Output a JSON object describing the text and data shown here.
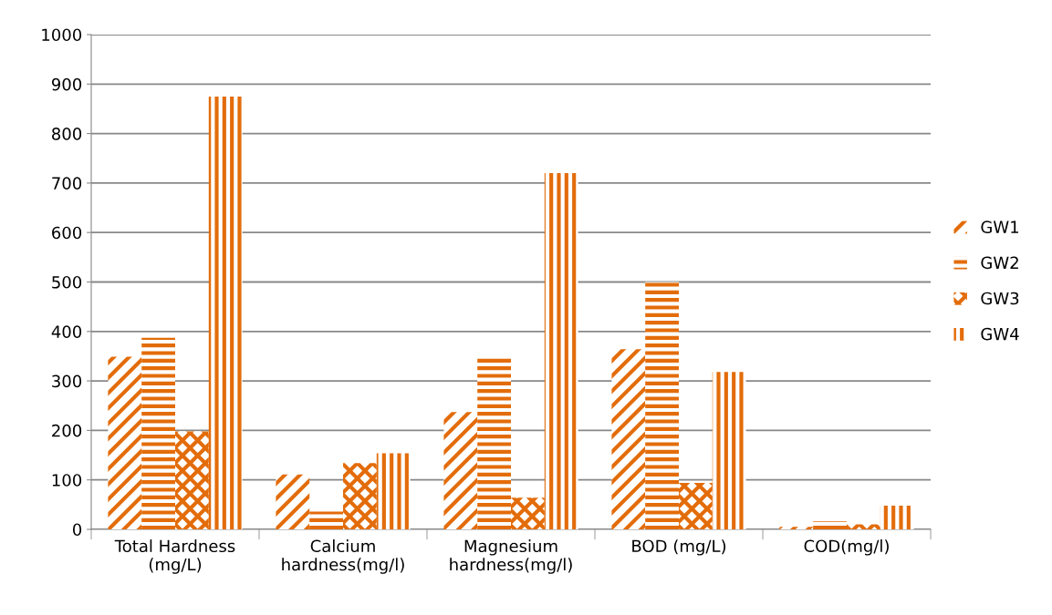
{
  "chart_data": {
    "type": "bar",
    "categories": [
      "Total Hardness\n(mg/L)",
      "Calcium\nhardness(mg/l)",
      "Magnesium\nhardness(mg/l)",
      "BOD (mg/L)",
      "COD(mg/l)"
    ],
    "series": [
      {
        "name": "GW1",
        "color": "#e36c0a",
        "values": [
          349,
          111,
          237,
          364,
          5
        ]
      },
      {
        "name": "GW2",
        "color": "#e36c0a",
        "values": [
          387,
          36,
          349,
          500,
          16
        ]
      },
      {
        "name": "GW3",
        "color": "#e36c0a",
        "values": [
          198,
          134,
          64,
          94,
          10
        ]
      },
      {
        "name": "GW4",
        "color": "#e36c0a",
        "values": [
          875,
          154,
          720,
          318,
          48
        ]
      }
    ],
    "ylim": [
      0,
      1000
    ],
    "yticks": [
      0,
      100,
      200,
      300,
      400,
      500,
      600,
      700,
      800,
      900,
      1000
    ],
    "grid": "y",
    "legend": "right"
  }
}
